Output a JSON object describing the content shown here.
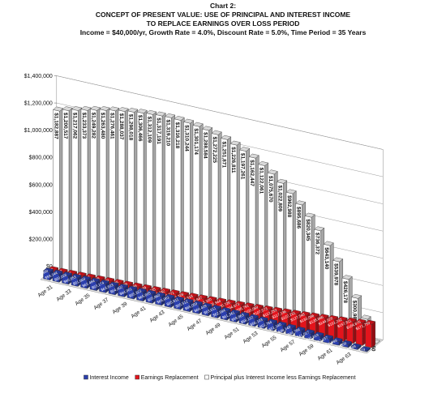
{
  "chart_data": {
    "type": "bar3d",
    "title": "Chart 2:",
    "subtitle": [
      "CONCEPT OF PRESENT VALUE: USE OF PRINCIPAL  AND INTEREST INCOME",
      "TO REPLACE EARNINGS OVER LOSS PERIOD",
      "Income = $40,000/yr,  Growth Rate = 4.0%, Discount Rate = 5.0%, Time Period = 35 Years"
    ],
    "categories": [
      null,
      "Age 31",
      null,
      "Age 33",
      null,
      "Age 35",
      null,
      "Age 37",
      null,
      "Age 39",
      null,
      "Age 41",
      null,
      "Age 43",
      null,
      "Age 45",
      null,
      "Age 47",
      null,
      "Age 49",
      null,
      "Age 51",
      null,
      "Age 53",
      null,
      "Age 55",
      null,
      "Age 57",
      null,
      "Age 59",
      null,
      "Age 61",
      null,
      "Age 63",
      null
    ],
    "ylim": [
      0,
      1400000
    ],
    "yticks": [
      {
        "value": 0,
        "label": "$0"
      },
      {
        "value": 200000,
        "label": "$200,000"
      },
      {
        "value": 400000,
        "label": "$400,000"
      },
      {
        "value": 600000,
        "label": "$600,000"
      },
      {
        "value": 800000,
        "label": "$800,000"
      },
      {
        "value": 1000000,
        "label": "$1,000,000"
      },
      {
        "value": 1200000,
        "label": "$1,200,000"
      },
      {
        "value": 1400000,
        "label": "$1,400,000"
      }
    ],
    "grid": true,
    "legend": "bottom",
    "series": [
      {
        "name": "Interest Income",
        "color": "#2b3fae",
        "values": [
          58300,
          59144,
          60026,
          60853,
          61669,
          62464,
          63174,
          63823,
          64402,
          64901,
          65323,
          65605,
          65860,
          65961,
          65811,
          65512,
          65059,
          64429,
          63611,
          62594,
          61341,
          59863,
          58122,
          56103,
          53784,
          51140,
          48149,
          44784,
          41017,
          36819,
          32157,
          26999,
          21309,
          15049,
          8179
        ],
        "value_labels": [
          "$58,300",
          "$59,144",
          "$60,026",
          "$60,853",
          "$61,669",
          "$62,464",
          "$63,174",
          "$63,823",
          "$64,402",
          "$64,901",
          "$65,323",
          "$65,605",
          "$65,860",
          "$65,961",
          "$65,811",
          "$65,512",
          "$65,059",
          "$64,429",
          "$63,611",
          "$62,594",
          "$61,341",
          "$59,863",
          "$58,122",
          "$56,103",
          "$53,784",
          "$51,140",
          "$48,149",
          "$44,784",
          "$41,017",
          "$36,819",
          "$32,157",
          "$26,999",
          "$21,309",
          "$15,049",
          "$8,179"
        ]
      },
      {
        "name": "Earnings Replacement",
        "color": "#e3141c",
        "values": [
          40400,
          42157,
          43991,
          45904,
          47901,
          49985,
          52159,
          54428,
          56796,
          59266,
          61844,
          64535,
          67342,
          70271,
          73328,
          76518,
          79847,
          83320,
          86944,
          90726,
          94673,
          98791,
          103089,
          107573,
          112253,
          117136,
          122231,
          127548,
          133096,
          138886,
          144928,
          151232,
          157811,
          164675,
          171759
        ],
        "value_labels": [
          "$40,400",
          "$42,157",
          "$43,991",
          "$45,904",
          "$47,901",
          "$49,985",
          "$52,159",
          "$54,428",
          "$56,796",
          "$59,266",
          "$61,844",
          "$64,535",
          "$67,342",
          "$70,271",
          "$73,328",
          "$76,518",
          "$79,847",
          "$83,320",
          "$86,944",
          "$90,726",
          "$94,673",
          "$98,791",
          "$103,089",
          "$107,573",
          "$112,253",
          "$117,136",
          "$122,231",
          "$127,548",
          "$133,096",
          "$138,886",
          "$144,928",
          "$151,232",
          "$157,811",
          "$164,675",
          "$171,759"
        ]
      },
      {
        "name": "Principal plus Interest Income less Earnings Replacement",
        "color": "#ffffff",
        "values": [
          1182887,
          1200517,
          1217062,
          1233373,
          1249282,
          1263480,
          1276461,
          1288037,
          1298018,
          1306466,
          1312109,
          1317191,
          1319210,
          1316218,
          1310244,
          1301174,
          1288584,
          1272225,
          1251871,
          1226811,
          1197261,
          1162447,
          1122061,
          1075670,
          1022809,
          962988,
          895686,
          820345,
          736372,
          643140,
          539978,
          426178,
          300982,
          163580,
          0
        ],
        "value_labels": [
          "$1,182,887",
          "$1,200,517",
          "$1,217,062",
          "$1,233,373",
          "$1,249,282",
          "$1,263,480",
          "$1,276,461",
          "$1,288,037",
          "$1,298,018",
          "$1,306,466",
          "$1,312,109",
          "$1,317,191",
          "$1,319,210",
          "$1,316,218",
          "$1,310,244",
          "$1,301,174",
          "$1,288,584",
          "$1,272,225",
          "$1,251,871",
          "$1,226,811",
          "$1,197,261",
          "$1,162,447",
          "$1,122,061",
          "$1,075,670",
          "$1,022,809",
          "$962,988",
          "$895,686",
          "$820,345",
          "$736,372",
          "$643,140",
          "$539,978",
          "$426,178",
          "$300,982",
          "$163,580",
          "$0"
        ]
      }
    ]
  }
}
